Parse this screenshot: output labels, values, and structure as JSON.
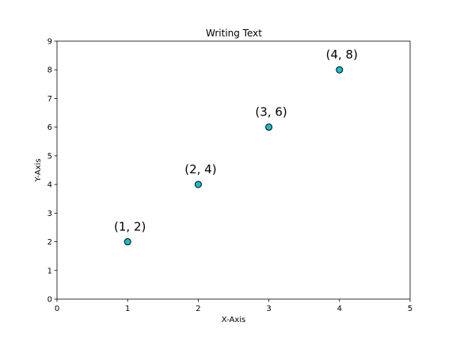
{
  "chart_data": {
    "type": "scatter",
    "title": "Writing Text",
    "xlabel": "X-Axis",
    "ylabel": "Y-Axis",
    "xlim": [
      0,
      5
    ],
    "ylim": [
      0,
      9
    ],
    "xticks": [
      "0",
      "1",
      "2",
      "3",
      "4",
      "5"
    ],
    "yticks": [
      "0",
      "1",
      "2",
      "3",
      "4",
      "5",
      "6",
      "7",
      "8",
      "9"
    ],
    "grid": false,
    "points": [
      {
        "x": 1,
        "y": 2,
        "label": "(1, 2)"
      },
      {
        "x": 2,
        "y": 4,
        "label": "(2, 4)"
      },
      {
        "x": 3,
        "y": 6,
        "label": "(3, 6)"
      },
      {
        "x": 4,
        "y": 8,
        "label": "(4, 8)"
      }
    ],
    "marker_color": "#17becf",
    "marker_edge_color": "#000000"
  }
}
